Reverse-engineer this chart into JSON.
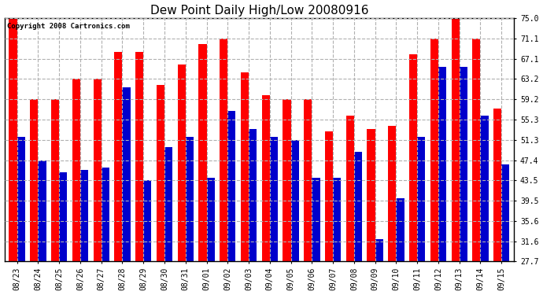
{
  "title": "Dew Point Daily High/Low 20080916",
  "copyright": "Copyright 2008 Cartronics.com",
  "dates": [
    "08/23",
    "08/24",
    "08/25",
    "08/26",
    "08/27",
    "08/28",
    "08/29",
    "08/30",
    "08/31",
    "09/01",
    "09/02",
    "09/03",
    "09/04",
    "09/05",
    "09/06",
    "09/07",
    "09/08",
    "09/09",
    "09/10",
    "09/11",
    "09/12",
    "09/13",
    "09/14",
    "09/15"
  ],
  "highs": [
    75.0,
    59.2,
    59.2,
    63.2,
    63.2,
    68.5,
    68.5,
    62.0,
    66.0,
    70.0,
    71.1,
    64.5,
    60.0,
    59.2,
    59.2,
    53.0,
    56.0,
    53.5,
    54.0,
    68.0,
    71.1,
    75.0,
    71.1,
    57.5
  ],
  "lows": [
    52.0,
    47.4,
    45.0,
    45.5,
    46.0,
    61.5,
    43.5,
    50.0,
    52.0,
    44.0,
    57.0,
    53.5,
    52.0,
    51.3,
    44.0,
    44.0,
    49.0,
    32.0,
    40.0,
    52.0,
    65.5,
    65.5,
    56.0,
    46.5
  ],
  "bar_color_high": "#ff0000",
  "bar_color_low": "#0000cc",
  "background_color": "#ffffff",
  "grid_color": "#b0b0b0",
  "yticks": [
    27.7,
    31.6,
    35.6,
    39.5,
    43.5,
    47.4,
    51.3,
    55.3,
    59.2,
    63.2,
    67.1,
    71.1,
    75.0
  ],
  "ymin": 27.7,
  "ymax": 75.0,
  "bar_width": 0.38,
  "title_fontsize": 11,
  "tick_fontsize": 7
}
